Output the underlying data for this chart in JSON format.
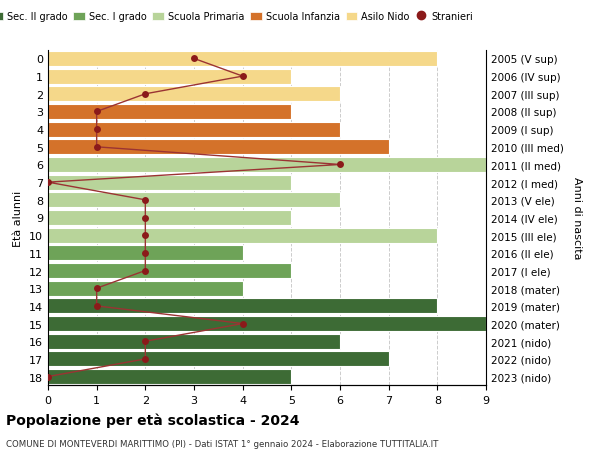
{
  "ages": [
    18,
    17,
    16,
    15,
    14,
    13,
    12,
    11,
    10,
    9,
    8,
    7,
    6,
    5,
    4,
    3,
    2,
    1,
    0
  ],
  "years": [
    "2005 (V sup)",
    "2006 (IV sup)",
    "2007 (III sup)",
    "2008 (II sup)",
    "2009 (I sup)",
    "2010 (III med)",
    "2011 (II med)",
    "2012 (I med)",
    "2013 (V ele)",
    "2014 (IV ele)",
    "2015 (III ele)",
    "2016 (II ele)",
    "2017 (I ele)",
    "2018 (mater)",
    "2019 (mater)",
    "2020 (mater)",
    "2021 (nido)",
    "2022 (nido)",
    "2023 (nido)"
  ],
  "bar_values": [
    5,
    7,
    6,
    9,
    8,
    4,
    5,
    4,
    8,
    5,
    6,
    5,
    9,
    7,
    6,
    5,
    6,
    5,
    8
  ],
  "stranieri": [
    0,
    2,
    2,
    4,
    1,
    1,
    2,
    2,
    2,
    2,
    2,
    0,
    6,
    1,
    1,
    1,
    2,
    4,
    3
  ],
  "bar_colors": {
    "sec2": "#3d6b35",
    "sec1": "#6ea358",
    "primaria": "#b8d49a",
    "infanzia": "#d4722a",
    "nido": "#f5d88a"
  },
  "school_levels": {
    "sec2": [
      18,
      17,
      16,
      15,
      14
    ],
    "sec1": [
      13,
      12,
      11
    ],
    "primaria": [
      10,
      9,
      8,
      7,
      6
    ],
    "infanzia": [
      5,
      4,
      3
    ],
    "nido": [
      2,
      1,
      0
    ]
  },
  "legend_labels": [
    "Sec. II grado",
    "Sec. I grado",
    "Scuola Primaria",
    "Scuola Infanzia",
    "Asilo Nido",
    "Stranieri"
  ],
  "legend_colors": [
    "#3d6b35",
    "#6ea358",
    "#b8d49a",
    "#d4722a",
    "#f5d88a",
    "#8b1a1a"
  ],
  "stranieri_color": "#8b1a1a",
  "stranieri_line_color": "#9b3333",
  "title": "Popolazione per età scolastica - 2024",
  "subtitle": "COMUNE DI MONTEVERDI MARITTIMO (PI) - Dati ISTAT 1° gennaio 2024 - Elaborazione TUTTITALIA.IT",
  "ylabel_left": "Età alunni",
  "ylabel_right": "Anni di nascita",
  "xlim": [
    0,
    9
  ],
  "background_color": "#ffffff",
  "grid_color": "#cccccc"
}
